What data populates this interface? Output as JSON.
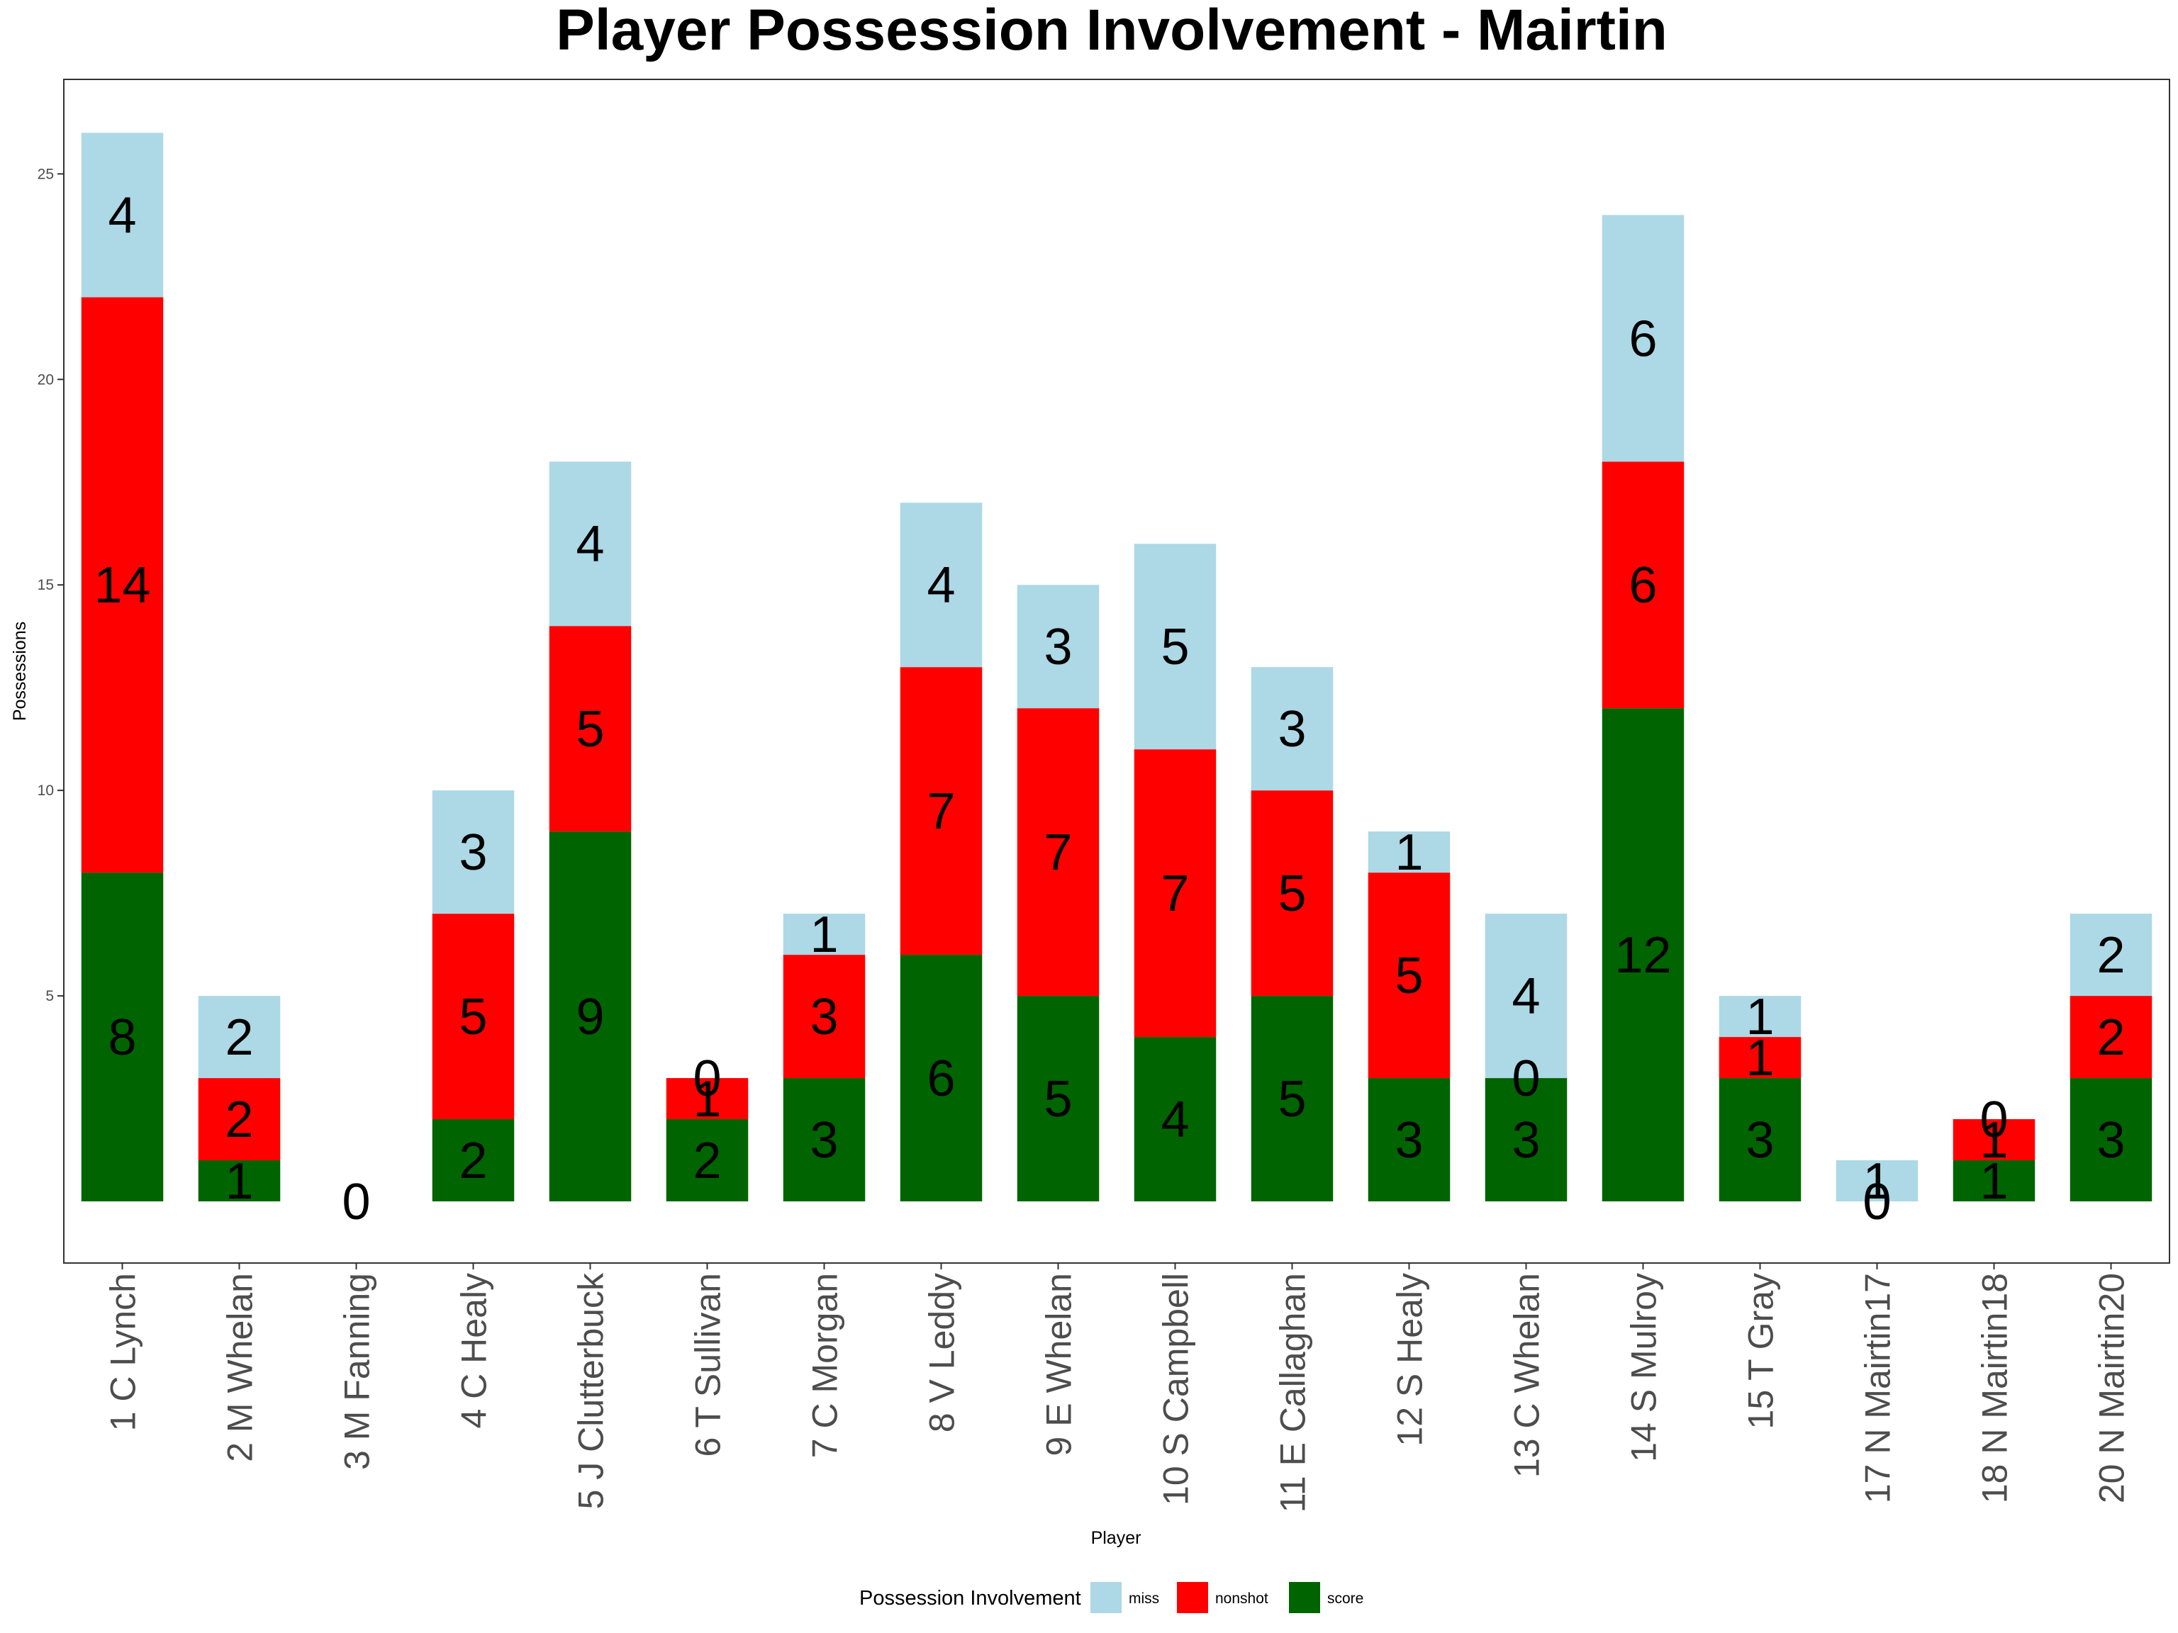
{
  "chart_data": {
    "type": "bar",
    "stacked": true,
    "title": "Player Possession Involvement - Mairtin",
    "xlabel": "Player",
    "ylabel": "Possessions",
    "ylim": [
      -1.5,
      27.3
    ],
    "yticks": [
      5,
      10,
      15,
      20,
      25
    ],
    "grid": false,
    "legend_position": "bottom",
    "legend_title": "Possession Involvement",
    "categories": [
      "1 C Lynch",
      "2 M Whelan",
      "3 M Fanning",
      "4 C Healy",
      "5 J Clutterbuck",
      "6 T Sullivan",
      "7 C Morgan",
      "8 V Leddy",
      "9 E Whelan",
      "10 S Campbell",
      "11 E Callaghan",
      "12 S Healy",
      "13 C Whelan",
      "14 S Mulroy",
      "15 T Gray",
      "17 N Mairtin17",
      "18 N Mairtin18",
      "20 N Mairtin20"
    ],
    "series": [
      {
        "name": "score",
        "color": "#006400",
        "values": [
          8,
          1,
          0,
          2,
          9,
          2,
          3,
          6,
          5,
          4,
          5,
          3,
          3,
          12,
          3,
          0,
          1,
          3
        ]
      },
      {
        "name": "nonshot",
        "color": "#ff0000",
        "values": [
          14,
          2,
          0,
          5,
          5,
          1,
          3,
          7,
          7,
          7,
          5,
          5,
          0,
          6,
          1,
          0,
          1,
          2
        ]
      },
      {
        "name": "miss",
        "color": "#add8e6",
        "values": [
          4,
          2,
          0,
          3,
          4,
          0,
          1,
          4,
          3,
          5,
          3,
          1,
          4,
          6,
          1,
          1,
          0,
          2
        ]
      }
    ],
    "legend_order": [
      "miss",
      "nonshot",
      "score"
    ]
  }
}
